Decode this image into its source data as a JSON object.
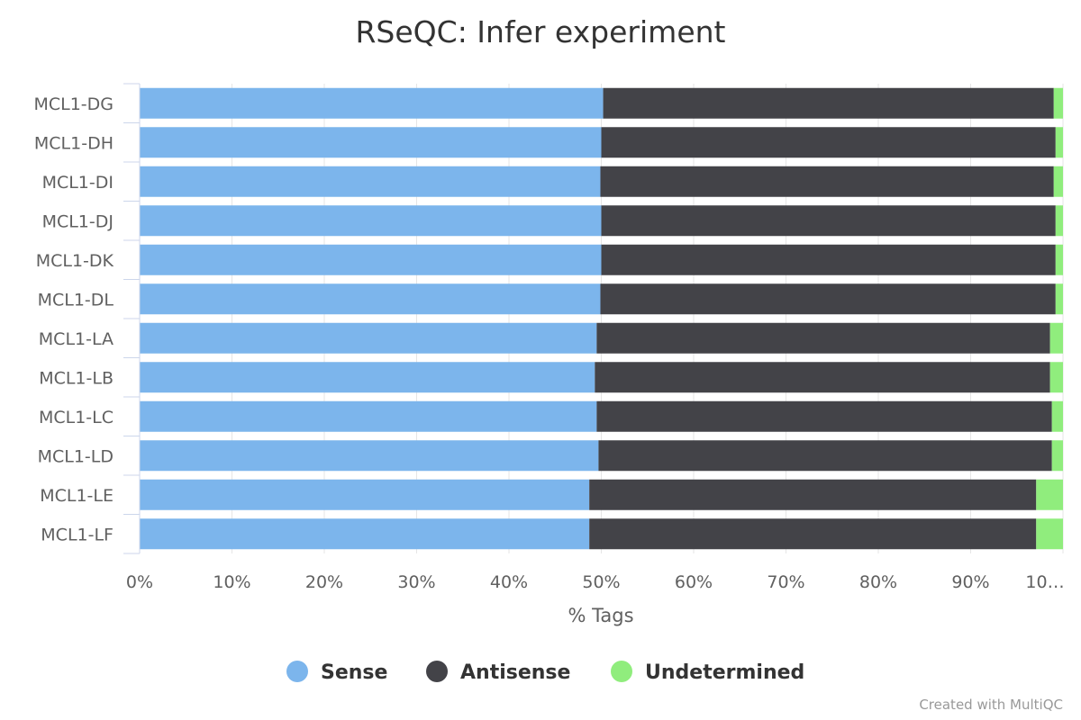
{
  "chart_data": {
    "type": "bar",
    "orientation": "horizontal",
    "stacking": "percent",
    "title": "RSeQC: Infer experiment",
    "xlabel": "% Tags",
    "ylabel": "",
    "xlim": [
      0,
      100
    ],
    "x_ticks": [
      "0%",
      "10%",
      "20%",
      "30%",
      "40%",
      "50%",
      "60%",
      "70%",
      "80%",
      "90%",
      "10…"
    ],
    "grid": true,
    "legend_position": "bottom-center",
    "categories": [
      "MCL1-DG",
      "MCL1-DH",
      "MCL1-DI",
      "MCL1-DJ",
      "MCL1-DK",
      "MCL1-DL",
      "MCL1-LA",
      "MCL1-LB",
      "MCL1-LC",
      "MCL1-LD",
      "MCL1-LE",
      "MCL1-LF"
    ],
    "series": [
      {
        "name": "Sense",
        "color": "#7cb5ec",
        "values": [
          50.2,
          50.0,
          49.9,
          50.0,
          50.0,
          49.9,
          49.5,
          49.3,
          49.5,
          49.7,
          48.7,
          48.7
        ]
      },
      {
        "name": "Antisense",
        "color": "#434348",
        "values": [
          48.8,
          49.2,
          49.1,
          49.2,
          49.2,
          49.3,
          49.1,
          49.3,
          49.3,
          49.1,
          48.4,
          48.4
        ]
      },
      {
        "name": "Undetermined",
        "color": "#90ed7d",
        "values": [
          1.0,
          0.8,
          1.0,
          0.8,
          0.8,
          0.8,
          1.4,
          1.4,
          1.2,
          1.2,
          2.9,
          2.9
        ]
      }
    ]
  },
  "credit": "Created with MultiQC"
}
